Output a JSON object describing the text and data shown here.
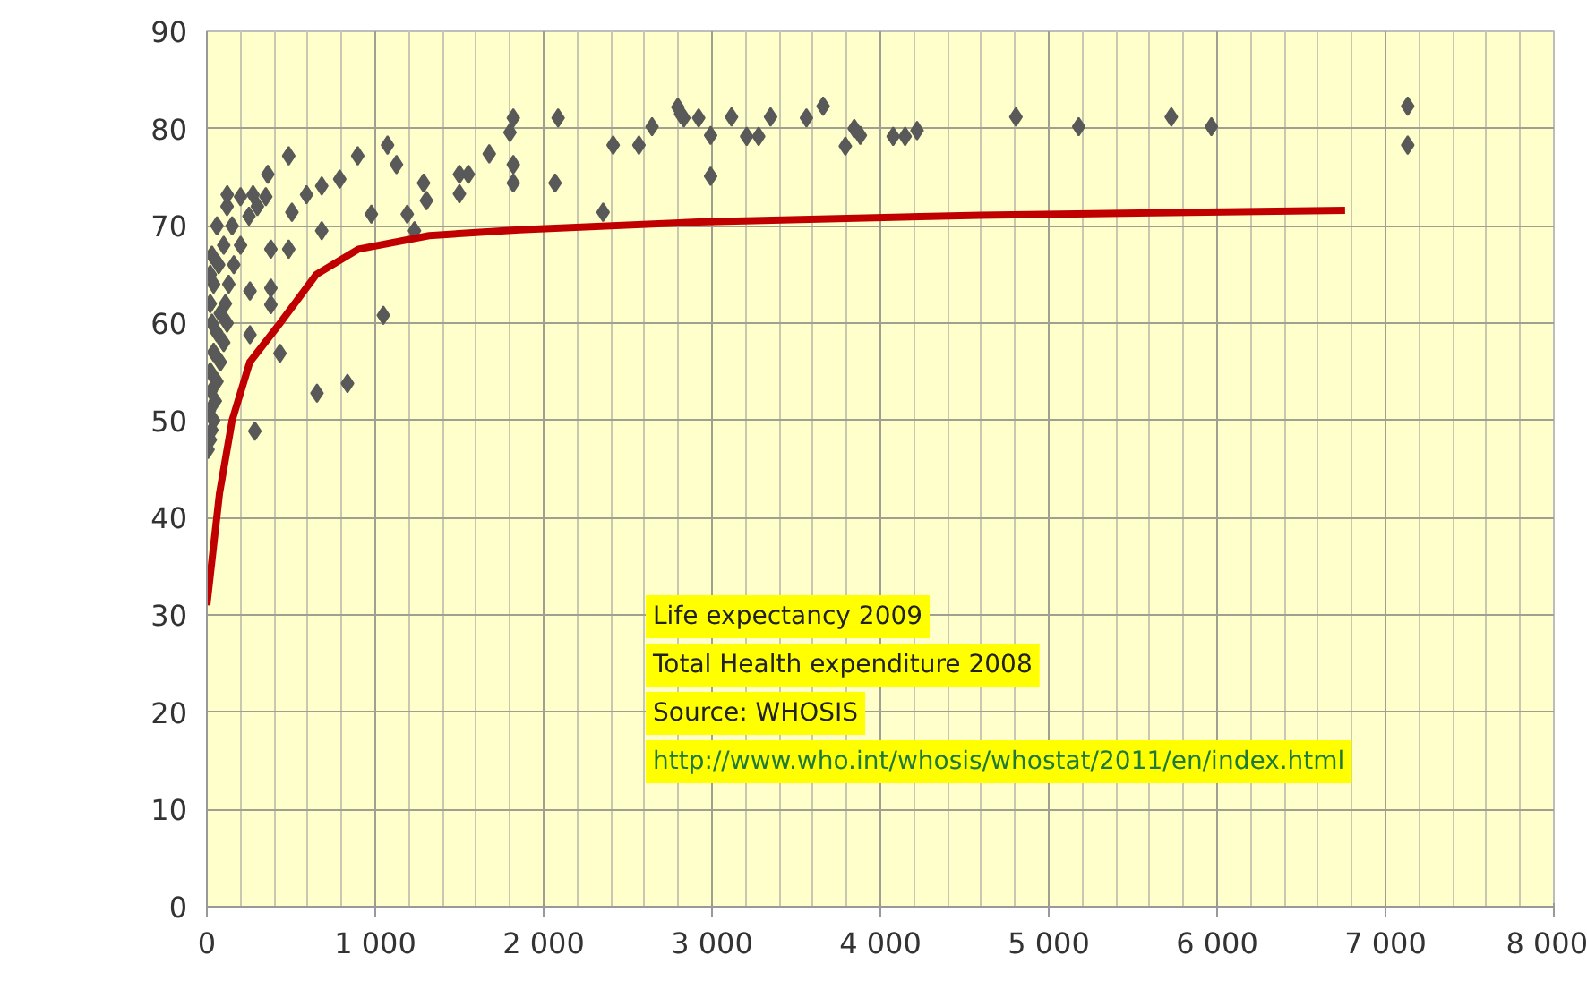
{
  "chart_data": {
    "type": "scatter",
    "xlim": [
      0,
      8000
    ],
    "ylim": [
      0,
      90
    ],
    "xticks": [
      0,
      {
        "value": 1000,
        "label": "1 000"
      },
      {
        "value": 2000,
        "label": "2 000"
      },
      {
        "value": 3000,
        "label": "3 000"
      },
      {
        "value": 4000,
        "label": "4 000"
      },
      {
        "value": 5000,
        "label": "5 000"
      },
      {
        "value": 6000,
        "label": "6 000"
      },
      {
        "value": 7000,
        "label": "7 000"
      },
      {
        "value": 8000,
        "label": "8 000"
      }
    ],
    "yticks": [
      0,
      10,
      20,
      30,
      40,
      50,
      60,
      70,
      80,
      90
    ],
    "grid": true,
    "marker": "diamond",
    "annotations": [
      "Life expectancy 2009",
      "Total Health expenditure 2008",
      "Source: WHOSIS",
      "http://www.who.int/whosis/whostat/2011/en/index.html"
    ],
    "series": [
      {
        "color": "#595959",
        "x": [
          7,
          20,
          30,
          40,
          15,
          50,
          25,
          60,
          20,
          80,
          40,
          100,
          60,
          30,
          120,
          80,
          20,
          110,
          40,
          130,
          20,
          70,
          160,
          30,
          100,
          200,
          60,
          150,
          250,
          120,
          300,
          200,
          350,
          274,
          362,
          486,
          682,
          256,
          380,
          380,
          434,
          654,
          835,
          1048,
          285,
          977,
          1190,
          1233,
          896,
          1073,
          1126,
          1287,
          1304,
          1500,
          1500,
          1553,
          1677,
          1820,
          1820,
          1820,
          1800,
          2086,
          2068,
          2353,
          2413,
          2566,
          2644,
          2797,
          2833,
          592,
          682,
          789,
          505,
          486,
          380,
          256,
          121,
          2814,
          2921,
          2992,
          2992,
          3116,
          3206,
          3277,
          3348,
          3561,
          3660,
          3792,
          3845,
          3881,
          4076,
          4147,
          4218,
          4805,
          5178,
          5728,
          5966,
          7132,
          7132
        ],
        "values": [
          47,
          48,
          49,
          50,
          51,
          52,
          53,
          54,
          55,
          56,
          57,
          58,
          59,
          60,
          60,
          61,
          62,
          62,
          64,
          64,
          65,
          66,
          66,
          67,
          68,
          68,
          70,
          70,
          71,
          72,
          72,
          73,
          73,
          73.2,
          75.3,
          77.2,
          69.5,
          58.8,
          61.9,
          63.6,
          56.9,
          52.8,
          53.8,
          60.8,
          48.9,
          71.2,
          71.2,
          69.5,
          77.2,
          78.3,
          76.3,
          74.4,
          72.6,
          75.3,
          73.3,
          75.3,
          77.4,
          76.3,
          74.4,
          81.1,
          79.6,
          81.1,
          74.4,
          71.4,
          78.3,
          78.3,
          80.2,
          82.2,
          81.1,
          73.2,
          74.1,
          74.8,
          71.4,
          67.6,
          67.6,
          63.3,
          73.2,
          81.5,
          81.1,
          79.3,
          75.1,
          81.2,
          79.2,
          79.2,
          81.2,
          81.1,
          82.3,
          78.2,
          80.0,
          79.3,
          79.2,
          79.2,
          79.8,
          81.2,
          80.2,
          81.2,
          80.2,
          82.3,
          78.3
        ]
      },
      {
        "type": "line",
        "color": "#c00000",
        "marker": "none",
        "line_style": "solid",
        "x": [
          0,
          75,
          150,
          255,
          435,
          650,
          900,
          1320,
          1855,
          2920,
          4595,
          6760
        ],
        "values": [
          31,
          42.5,
          50,
          56,
          60,
          65,
          67.6,
          69,
          69.6,
          70.4,
          71.1,
          71.6
        ]
      }
    ]
  }
}
